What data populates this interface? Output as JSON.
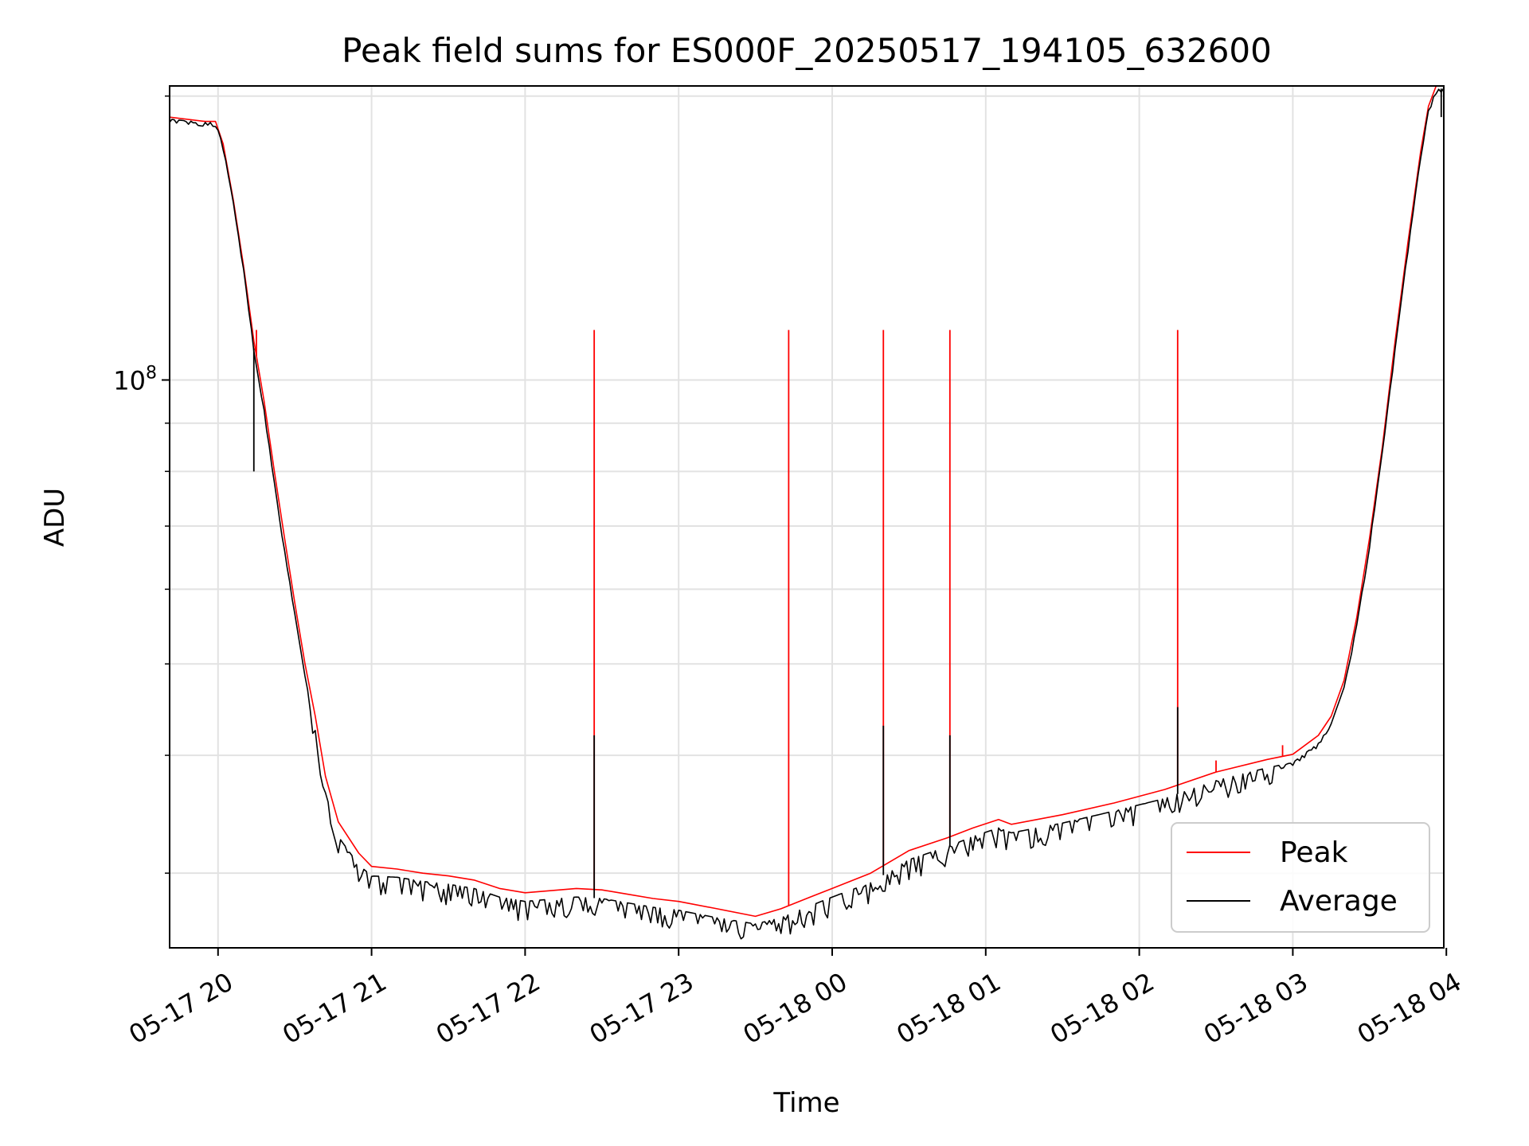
{
  "chart_data": {
    "type": "line",
    "title": "Peak field sums for ES000F_20250517_194105_632600",
    "xlabel": "Time",
    "ylabel": "ADU",
    "y_scale": "log",
    "ylim": [
      25000000,
      205000000
    ],
    "xlim": [
      "2025-05-17 19:41:05",
      "2025-05-18 03:59:00"
    ],
    "x_ticks": [
      {
        "t": "2025-05-17 20:00",
        "label": "05-17 20"
      },
      {
        "t": "2025-05-17 21:00",
        "label": "05-17 21"
      },
      {
        "t": "2025-05-17 22:00",
        "label": "05-17 22"
      },
      {
        "t": "2025-05-17 23:00",
        "label": "05-17 23"
      },
      {
        "t": "2025-05-18 00:00",
        "label": "05-18 00"
      },
      {
        "t": "2025-05-18 01:00",
        "label": "05-18 01"
      },
      {
        "t": "2025-05-18 02:00",
        "label": "05-18 02"
      },
      {
        "t": "2025-05-18 03:00",
        "label": "05-18 03"
      },
      {
        "t": "2025-05-18 04:00",
        "label": "05-18 04"
      }
    ],
    "y_major_tick": {
      "value": 100000000,
      "label_base": "10",
      "label_exp": "8"
    },
    "y_minor_ticks": [
      30000000,
      40000000,
      50000000,
      60000000,
      70000000,
      80000000,
      90000000,
      200000000
    ],
    "grid": true,
    "legend_position": "lower-right",
    "series": [
      {
        "name": "Peak",
        "color": "#ff0000",
        "x": [
          "2025-05-17 19:41",
          "2025-05-17 19:55",
          "2025-05-17 19:59",
          "2025-05-17 20:02",
          "2025-05-17 20:06",
          "2025-05-17 20:10",
          "2025-05-17 20:14",
          "2025-05-17 20:18",
          "2025-05-17 20:22",
          "2025-05-17 20:26",
          "2025-05-17 20:30",
          "2025-05-17 20:34",
          "2025-05-17 20:38",
          "2025-05-17 20:42",
          "2025-05-17 20:47",
          "2025-05-17 20:55",
          "2025-05-17 21:00",
          "2025-05-17 21:10",
          "2025-05-17 21:20",
          "2025-05-17 21:30",
          "2025-05-17 21:40",
          "2025-05-17 21:50",
          "2025-05-17 22:00",
          "2025-05-17 22:20",
          "2025-05-17 22:30",
          "2025-05-17 22:40",
          "2025-05-17 22:50",
          "2025-05-17 23:00",
          "2025-05-17 23:15",
          "2025-05-17 23:30",
          "2025-05-17 23:40",
          "2025-05-17 23:50",
          "2025-05-18 00:00",
          "2025-05-18 00:15",
          "2025-05-18 00:30",
          "2025-05-18 00:45",
          "2025-05-18 00:55",
          "2025-05-18 01:05",
          "2025-05-18 01:10",
          "2025-05-18 01:30",
          "2025-05-18 01:50",
          "2025-05-18 02:10",
          "2025-05-18 02:30",
          "2025-05-18 02:50",
          "2025-05-18 03:00",
          "2025-05-18 03:10",
          "2025-05-18 03:15",
          "2025-05-18 03:20",
          "2025-05-18 03:25",
          "2025-05-18 03:30",
          "2025-05-18 03:35",
          "2025-05-18 03:40",
          "2025-05-18 03:45",
          "2025-05-18 03:50",
          "2025-05-18 03:53",
          "2025-05-18 03:56",
          "2025-05-18 03:59"
        ],
        "values": [
          190000000,
          188000000,
          188000000,
          178000000,
          155000000,
          132000000,
          110000000,
          95000000,
          80000000,
          68000000,
          58000000,
          50000000,
          44000000,
          38000000,
          34000000,
          31500000,
          30500000,
          30300000,
          30000000,
          29800000,
          29500000,
          28900000,
          28600000,
          28900000,
          28800000,
          28500000,
          28200000,
          28000000,
          27500000,
          27000000,
          27500000,
          28200000,
          28900000,
          30000000,
          31700000,
          32700000,
          33500000,
          34200000,
          33800000,
          34600000,
          35600000,
          36800000,
          38400000,
          39600000,
          40100000,
          42000000,
          44000000,
          48000000,
          56000000,
          68000000,
          85000000,
          110000000,
          140000000,
          175000000,
          195000000,
          205000000,
          205000000
        ],
        "spikes": [
          {
            "x": "2025-05-17 20:15",
            "y": 113000000
          },
          {
            "x": "2025-05-17 22:27",
            "y": 113000000
          },
          {
            "x": "2025-05-17 23:43",
            "y": 113000000
          },
          {
            "x": "2025-05-18 00:20",
            "y": 113000000
          },
          {
            "x": "2025-05-18 00:46",
            "y": 113000000
          },
          {
            "x": "2025-05-18 02:15",
            "y": 113000000
          },
          {
            "x": "2025-05-18 02:30",
            "y": 39500000
          },
          {
            "x": "2025-05-18 02:56",
            "y": 41000000
          }
        ]
      },
      {
        "name": "Average",
        "color": "#000000",
        "x": [
          "2025-05-17 19:41",
          "2025-05-17 19:55",
          "2025-05-17 19:59",
          "2025-05-17 20:02",
          "2025-05-17 20:06",
          "2025-05-17 20:10",
          "2025-05-17 20:14",
          "2025-05-17 20:18",
          "2025-05-17 20:22",
          "2025-05-17 20:26",
          "2025-05-17 20:30",
          "2025-05-17 20:34",
          "2025-05-17 20:38",
          "2025-05-17 20:42",
          "2025-05-17 20:47",
          "2025-05-17 20:55",
          "2025-05-17 21:00",
          "2025-05-17 21:10",
          "2025-05-17 21:20",
          "2025-05-17 21:30",
          "2025-05-17 21:40",
          "2025-05-17 21:50",
          "2025-05-17 22:00",
          "2025-05-17 22:20",
          "2025-05-17 22:30",
          "2025-05-17 22:40",
          "2025-05-17 22:50",
          "2025-05-17 23:00",
          "2025-05-17 23:15",
          "2025-05-17 23:30",
          "2025-05-17 23:40",
          "2025-05-17 23:50",
          "2025-05-18 00:00",
          "2025-05-18 00:15",
          "2025-05-18 00:30",
          "2025-05-18 00:45",
          "2025-05-18 00:55",
          "2025-05-18 01:05",
          "2025-05-18 01:10",
          "2025-05-18 01:30",
          "2025-05-18 01:50",
          "2025-05-18 02:10",
          "2025-05-18 02:30",
          "2025-05-18 02:50",
          "2025-05-18 03:00",
          "2025-05-18 03:10",
          "2025-05-18 03:15",
          "2025-05-18 03:20",
          "2025-05-18 03:25",
          "2025-05-18 03:30",
          "2025-05-18 03:35",
          "2025-05-18 03:40",
          "2025-05-18 03:45",
          "2025-05-18 03:50",
          "2025-05-18 03:53",
          "2025-05-18 03:56",
          "2025-05-18 03:59"
        ],
        "values": [
          189000000,
          187500000,
          187500000,
          177000000,
          154000000,
          131000000,
          108000000,
          93000000,
          78000000,
          66000000,
          56500000,
          48500000,
          42500000,
          36500000,
          32800000,
          30600000,
          29800000,
          29700000,
          29400000,
          29200000,
          28900000,
          28300000,
          28000000,
          28300000,
          28200000,
          27900000,
          27600000,
          27400000,
          26900000,
          26500000,
          26900000,
          27600000,
          28300000,
          29300000,
          31000000,
          32000000,
          32800000,
          33500000,
          33100000,
          33900000,
          34900000,
          36000000,
          37600000,
          38800000,
          39300000,
          41200000,
          43200000,
          47200000,
          55000000,
          67000000,
          84000000,
          108000000,
          138000000,
          173000000,
          193000000,
          203000000,
          204000000
        ],
        "spikes": [
          {
            "x": "2025-05-17 20:14",
            "y": 80000000
          },
          {
            "x": "2025-05-17 22:27",
            "y": 42000000
          },
          {
            "x": "2025-05-18 00:20",
            "y": 43000000
          },
          {
            "x": "2025-05-18 00:46",
            "y": 42000000
          },
          {
            "x": "2025-05-18 02:15",
            "y": 45000000
          },
          {
            "x": "2025-05-18 03:58",
            "y": 190000000
          }
        ],
        "noise_fraction": 0.06
      }
    ]
  }
}
